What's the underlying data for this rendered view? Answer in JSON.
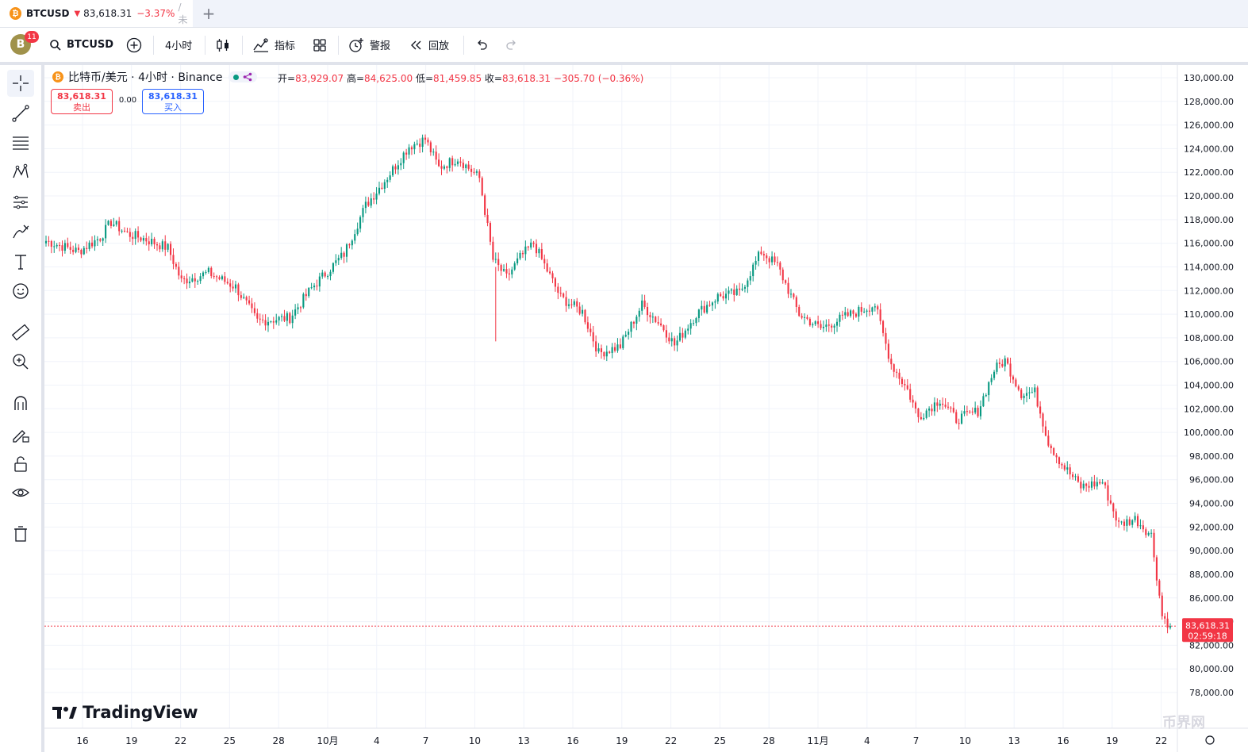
{
  "tab": {
    "coin": "₿",
    "symbol": "BTCUSD",
    "price": "83,618.31",
    "change": "−3.37%",
    "rest": "/ 未"
  },
  "toolbar": {
    "avatar_letter": "B",
    "notif_count": "11",
    "symbol": "BTCUSD",
    "interval": "4小时",
    "indicators": "指标",
    "alerts": "警报",
    "replay": "回放"
  },
  "legend": {
    "title": "比特币/美元 · 4小时 · Binance",
    "open_label": "开=",
    "open": "83,929.07",
    "high_label": "高=",
    "high": "84,625.00",
    "low_label": "低=",
    "low": "81,459.85",
    "close_label": "收=",
    "close": "83,618.31",
    "change": "−305.70 (−0.36%)"
  },
  "trade": {
    "sell_price": "83,618.31",
    "sell_label": "卖出",
    "spread": "0.00",
    "buy_price": "83,618.31",
    "buy_label": "买入"
  },
  "branding": {
    "logo": "TradingView",
    "watermark": "币界网"
  },
  "colors": {
    "up": "#089981",
    "down": "#f23645",
    "accent": "#2962ff"
  },
  "chart_data": {
    "type": "candlestick",
    "symbol": "BTCUSD",
    "interval": "4小时",
    "ylim": [
      78000,
      130000
    ],
    "y_ticks": [
      "130,000.00",
      "128,000.00",
      "126,000.00",
      "124,000.00",
      "122,000.00",
      "120,000.00",
      "118,000.00",
      "116,000.00",
      "114,000.00",
      "112,000.00",
      "110,000.00",
      "108,000.00",
      "106,000.00",
      "104,000.00",
      "102,000.00",
      "100,000.00",
      "98,000.00",
      "96,000.00",
      "94,000.00",
      "92,000.00",
      "90,000.00",
      "88,000.00",
      "86,000.00",
      "84,000.00",
      "82,000.00",
      "80,000.00",
      "78,000.00"
    ],
    "x_ticks": [
      "16",
      "19",
      "22",
      "25",
      "28",
      "10月",
      "4",
      "7",
      "10",
      "13",
      "16",
      "19",
      "22",
      "25",
      "28",
      "11月",
      "4",
      "7",
      "10",
      "13",
      "16",
      "19",
      "22"
    ],
    "last_price_label": "83,618.31",
    "countdown": "02:59:18",
    "last_price": 83618.31,
    "anchors": [
      [
        0,
        116200
      ],
      [
        12,
        115300
      ],
      [
        20,
        116500
      ],
      [
        24,
        117800
      ],
      [
        30,
        116800
      ],
      [
        36,
        116400
      ],
      [
        45,
        115600
      ],
      [
        50,
        112800
      ],
      [
        60,
        113500
      ],
      [
        70,
        112300
      ],
      [
        78,
        109400
      ],
      [
        90,
        109700
      ],
      [
        98,
        112200
      ],
      [
        110,
        115100
      ],
      [
        118,
        119200
      ],
      [
        126,
        121600
      ],
      [
        134,
        124200
      ],
      [
        140,
        124800
      ],
      [
        145,
        122400
      ],
      [
        152,
        123200
      ],
      [
        160,
        121500
      ],
      [
        165,
        114600
      ],
      [
        170,
        113100
      ],
      [
        175,
        114800
      ],
      [
        180,
        116000
      ],
      [
        190,
        111400
      ],
      [
        198,
        110200
      ],
      [
        204,
        106700
      ],
      [
        212,
        107300
      ],
      [
        220,
        110800
      ],
      [
        228,
        108800
      ],
      [
        232,
        107400
      ],
      [
        240,
        110000
      ],
      [
        248,
        111500
      ],
      [
        256,
        111800
      ],
      [
        264,
        115300
      ],
      [
        270,
        114100
      ],
      [
        278,
        110000
      ],
      [
        286,
        108800
      ],
      [
        296,
        109900
      ],
      [
        306,
        110800
      ],
      [
        312,
        105800
      ],
      [
        318,
        103600
      ],
      [
        322,
        101300
      ],
      [
        330,
        102800
      ],
      [
        336,
        101100
      ],
      [
        344,
        101800
      ],
      [
        350,
        105300
      ],
      [
        354,
        106100
      ],
      [
        360,
        103300
      ],
      [
        365,
        103400
      ],
      [
        370,
        99200
      ],
      [
        375,
        97300
      ],
      [
        382,
        95400
      ],
      [
        390,
        95800
      ],
      [
        396,
        92200
      ],
      [
        402,
        92700
      ],
      [
        408,
        91300
      ],
      [
        412,
        84500
      ],
      [
        415,
        83618
      ]
    ]
  }
}
